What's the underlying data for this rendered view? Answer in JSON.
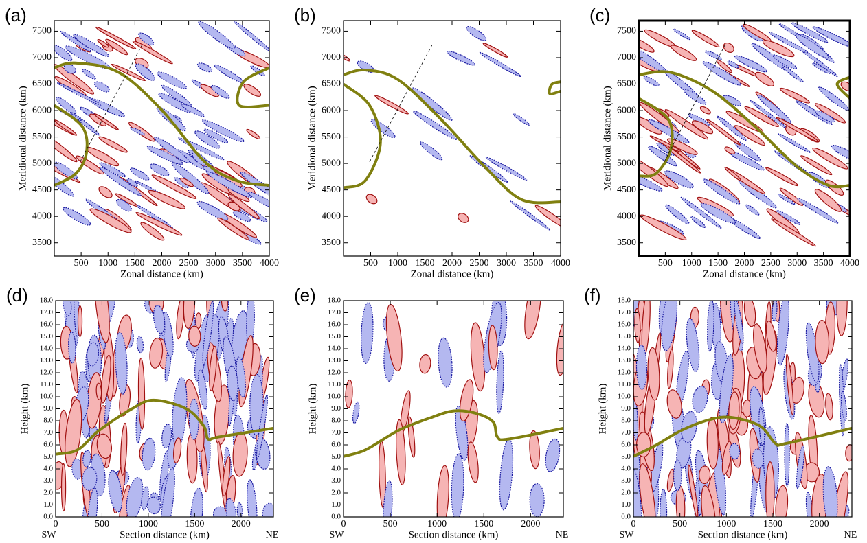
{
  "chart_data": [
    {
      "type": "contour",
      "panel_label": "(a)",
      "x_label": "Zonal distance (km)",
      "y_label": "Meridional distance (km)",
      "xlim": [
        0,
        4000
      ],
      "ylim": [
        3250,
        7700
      ],
      "xticks": [
        500,
        1000,
        1500,
        2000,
        2500,
        3000,
        3500,
        4000
      ],
      "yticks": [
        3500,
        4000,
        4500,
        5000,
        5500,
        6000,
        6500,
        7000,
        7500
      ]
    },
    {
      "type": "contour",
      "panel_label": "(b)",
      "x_label": "Zonal distance (km)",
      "y_label": "Meridional distance (km)",
      "xlim": [
        0,
        4000
      ],
      "ylim": [
        3250,
        7700
      ],
      "xticks": [
        500,
        1000,
        1500,
        2000,
        2500,
        3000,
        3500,
        4000
      ],
      "yticks": [
        3500,
        4000,
        4500,
        5000,
        5500,
        6000,
        6500,
        7000,
        7500
      ]
    },
    {
      "type": "contour",
      "panel_label": "(c)",
      "x_label": "Zonal distance (km)",
      "y_label": "Meridional distance (km)",
      "xlim": [
        0,
        4000
      ],
      "ylim": [
        3250,
        7700
      ],
      "xticks": [
        500,
        1000,
        1500,
        2000,
        2500,
        3000,
        3500,
        4000
      ],
      "yticks": [
        3500,
        4000,
        4500,
        5000,
        5500,
        6000,
        6500,
        7000,
        7500
      ]
    },
    {
      "type": "contour",
      "panel_label": "(d)",
      "x_label": "Section distance (km)",
      "y_label": "Height (km)",
      "x_start_label": "SW",
      "x_end_label": "NE",
      "xlim": [
        0,
        2350
      ],
      "ylim": [
        0,
        18
      ],
      "xticks": [
        0,
        500,
        1000,
        1500,
        2000
      ],
      "yticks": [
        {
          "value": 0,
          "label": "0.0"
        },
        {
          "value": 1,
          "label": "1.0"
        },
        {
          "value": 2,
          "label": "2.0"
        },
        {
          "value": 3,
          "label": "3.0"
        },
        {
          "value": 4,
          "label": "4.0"
        },
        {
          "value": 5,
          "label": "5.0"
        },
        {
          "value": 6,
          "label": "6.0"
        },
        {
          "value": 7,
          "label": "7.0"
        },
        {
          "value": 8,
          "label": "8.0"
        },
        {
          "value": 9,
          "label": "9.0"
        },
        {
          "value": 10,
          "label": "10.0"
        },
        {
          "value": 11,
          "label": "11.0"
        },
        {
          "value": 12,
          "label": "12.0"
        },
        {
          "value": 13,
          "label": "13.0"
        },
        {
          "value": 14,
          "label": "14.0"
        },
        {
          "value": 15,
          "label": "15.0"
        },
        {
          "value": 16,
          "label": "16.0"
        },
        {
          "value": 17,
          "label": "17.0"
        },
        {
          "value": 18,
          "label": "18.0"
        }
      ]
    },
    {
      "type": "contour",
      "panel_label": "(e)",
      "x_label": "Section distance (km)",
      "y_label": "Height (km)",
      "x_start_label": "SW",
      "x_end_label": "NE",
      "xlim": [
        0,
        2350
      ],
      "ylim": [
        0,
        18
      ],
      "xticks": [
        0,
        500,
        1000,
        1500,
        2000
      ],
      "yticks": [
        {
          "value": 0,
          "label": "0.0"
        },
        {
          "value": 1,
          "label": "1.0"
        },
        {
          "value": 2,
          "label": "2.0"
        },
        {
          "value": 3,
          "label": "3.0"
        },
        {
          "value": 4,
          "label": "4.0"
        },
        {
          "value": 5,
          "label": "5.0"
        },
        {
          "value": 6,
          "label": "6.0"
        },
        {
          "value": 7,
          "label": "7.0"
        },
        {
          "value": 8,
          "label": "8.0"
        },
        {
          "value": 9,
          "label": "9.0"
        },
        {
          "value": 10,
          "label": "10.0"
        },
        {
          "value": 11,
          "label": "11.0"
        },
        {
          "value": 12,
          "label": "12.0"
        },
        {
          "value": 13,
          "label": "13.0"
        },
        {
          "value": 14,
          "label": "14.0"
        },
        {
          "value": 15,
          "label": "15.0"
        },
        {
          "value": 16,
          "label": "16.0"
        },
        {
          "value": 17,
          "label": "17.0"
        },
        {
          "value": 18,
          "label": "18.0"
        }
      ]
    },
    {
      "type": "contour",
      "panel_label": "(f)",
      "x_label": "Section distance (km)",
      "y_label": "Height (km)",
      "x_start_label": "SW",
      "x_end_label": "NE",
      "xlim": [
        0,
        2350
      ],
      "ylim": [
        0,
        18
      ],
      "xticks": [
        0,
        500,
        1000,
        1500,
        2000
      ],
      "yticks": [
        {
          "value": 0,
          "label": "0.0"
        },
        {
          "value": 1,
          "label": "1.0"
        },
        {
          "value": 2,
          "label": "2.0"
        },
        {
          "value": 3,
          "label": "3.0"
        },
        {
          "value": 4,
          "label": "4.0"
        },
        {
          "value": 5,
          "label": "5.0"
        },
        {
          "value": 6,
          "label": "6.0"
        },
        {
          "value": 7,
          "label": "7.0"
        },
        {
          "value": 8,
          "label": "8.0"
        },
        {
          "value": 9,
          "label": "9.0"
        },
        {
          "value": 10,
          "label": "10.0"
        },
        {
          "value": 11,
          "label": "11.0"
        },
        {
          "value": 12,
          "label": "12.0"
        },
        {
          "value": 13,
          "label": "13.0"
        },
        {
          "value": 14,
          "label": "14.0"
        },
        {
          "value": 15,
          "label": "15.0"
        },
        {
          "value": 16,
          "label": "16.0"
        },
        {
          "value": 17,
          "label": "17.0"
        },
        {
          "value": 18,
          "label": "18.0"
        }
      ]
    }
  ]
}
